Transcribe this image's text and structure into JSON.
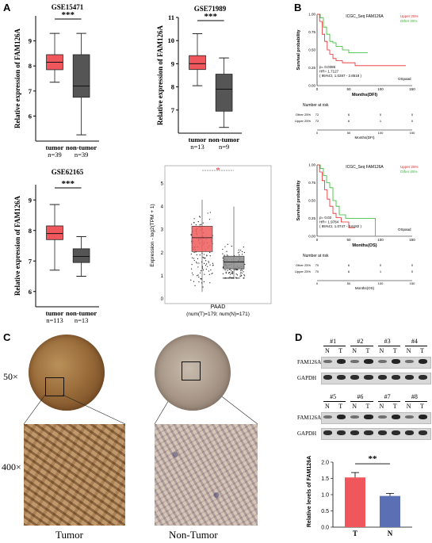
{
  "panels": {
    "A": "A",
    "B": "B",
    "C": "C",
    "D": "D"
  },
  "boxplots": [
    {
      "title": "GSE15471",
      "ylabel": "Relative expression of FAM126A",
      "yticks": [
        "6",
        "7",
        "8",
        "9"
      ],
      "ylim": [
        5,
        10
      ],
      "sig": "***",
      "groups": [
        {
          "name": "tumor",
          "n": "n=39",
          "color": "#f0575d",
          "min": 7.35,
          "q1": 7.85,
          "median": 8.15,
          "q3": 8.45,
          "max": 9.3
        },
        {
          "name": "non-tumor",
          "n": "n=39",
          "color": "#555555",
          "min": 5.25,
          "q1": 6.75,
          "median": 7.2,
          "q3": 8.45,
          "max": 9.3
        }
      ]
    },
    {
      "title": "GSE71989",
      "ylabel": "Relative expression of FAM126A",
      "yticks": [
        "7",
        "8",
        "9",
        "10",
        "11"
      ],
      "ylim": [
        6,
        11
      ],
      "sig": "***",
      "groups": [
        {
          "name": "tumor",
          "n": "n=13",
          "color": "#f0575d",
          "min": 8.05,
          "q1": 8.75,
          "median": 9.0,
          "q3": 9.35,
          "max": 10.3
        },
        {
          "name": "non-tumor",
          "n": "n=9",
          "color": "#555555",
          "min": 6.25,
          "q1": 6.95,
          "median": 7.9,
          "q3": 8.55,
          "max": 9.25
        }
      ]
    },
    {
      "title": "GSE62165",
      "ylabel": "Relative expression of FAM126A",
      "yticks": [
        "6",
        "7",
        "8",
        "9"
      ],
      "ylim": [
        5.5,
        9.5
      ],
      "sig": "***",
      "groups": [
        {
          "name": "tumor",
          "n": "n=113",
          "color": "#f0575d",
          "min": 6.7,
          "q1": 7.7,
          "median": 7.9,
          "q3": 8.15,
          "max": 8.85
        },
        {
          "name": "non-tumor",
          "n": "n=13",
          "color": "#555555",
          "min": 6.5,
          "q1": 6.95,
          "median": 7.15,
          "q3": 7.4,
          "max": 7.8
        }
      ]
    }
  ],
  "gepia": {
    "ylabel": "Expression - log2(TPM + 1)",
    "yticks": [
      "0",
      "1",
      "2",
      "3",
      "4",
      "5"
    ],
    "ylim": [
      0,
      5.5
    ],
    "sig": "*",
    "xlabel": "PAAD",
    "xsub": "(num(T)=179; num(N)=171)",
    "groups": [
      {
        "name": "T",
        "color": "#f05a5a",
        "min": 0.3,
        "q1": 2.05,
        "median": 2.65,
        "q3": 3.15,
        "max": 4.3
      },
      {
        "name": "N",
        "color": "#888888",
        "min": 0.9,
        "q1": 1.3,
        "median": 1.6,
        "q3": 1.85,
        "max": 4.0
      }
    ]
  },
  "km": [
    {
      "title": "ICGC_Seq FAM126A",
      "ylabel": "Survival probability",
      "xlabel": "Months(DFI)",
      "xticks": [
        "0",
        "50",
        "100",
        "150"
      ],
      "yticks": [
        "0.00",
        "0.25",
        "0.50",
        "0.75",
        "1.00"
      ],
      "legend": [
        {
          "label": "Upper 25%",
          "color": "#e8292b"
        },
        {
          "label": "Other 25%",
          "color": "#2db82d"
        }
      ],
      "stats": [
        "p= 0.0386",
        "HR= 1.7127",
        "( 95%CI, 1.0287 - 2.8518 )"
      ],
      "tag": "OSpaad",
      "risk_title": "Number at risk",
      "risk_rows": [
        {
          "label": "Other 25%",
          "values": [
            "72",
            "6",
            "0",
            "0"
          ]
        },
        {
          "label": "Upper 25%",
          "values": [
            "72",
            "6",
            "1",
            "0"
          ]
        }
      ],
      "risk_xlabel": "Months(DFI)",
      "series": {
        "green": [
          [
            0,
            1.0
          ],
          [
            5,
            0.95
          ],
          [
            10,
            0.82
          ],
          [
            15,
            0.72
          ],
          [
            20,
            0.62
          ],
          [
            25,
            0.6
          ],
          [
            30,
            0.55
          ],
          [
            40,
            0.5
          ],
          [
            50,
            0.46
          ],
          [
            60,
            0.46
          ],
          [
            80,
            0.46
          ]
        ],
        "red": [
          [
            0,
            1.0
          ],
          [
            4,
            0.9
          ],
          [
            8,
            0.72
          ],
          [
            12,
            0.62
          ],
          [
            16,
            0.5
          ],
          [
            20,
            0.44
          ],
          [
            25,
            0.38
          ],
          [
            30,
            0.35
          ],
          [
            40,
            0.32
          ],
          [
            60,
            0.28
          ],
          [
            140,
            0.28
          ]
        ]
      }
    },
    {
      "title": "ICGC_Seq FAM126A",
      "ylabel": "Survival probability",
      "xlabel": "Months(OS)",
      "xticks": [
        "0",
        "50",
        "100",
        "150"
      ],
      "yticks": [
        "0.00",
        "0.25",
        "0.50",
        "0.75",
        "1.00"
      ],
      "legend": [
        {
          "label": "Upper 25%",
          "color": "#e8292b"
        },
        {
          "label": "Other 25%",
          "color": "#2db82d"
        }
      ],
      "stats": [
        "p= 0.02",
        "HR= 1.9784",
        "( 95%CI, 1.0747 - 3.6182 )"
      ],
      "tag": "OSpaad",
      "risk_title": "Number at risk",
      "risk_rows": [
        {
          "label": "Other 25%",
          "values": [
            "70",
            "6",
            "0",
            "0"
          ]
        },
        {
          "label": "Upper 25%",
          "values": [
            "70",
            "6",
            "1",
            "0"
          ]
        }
      ],
      "risk_xlabel": "Months(OS)",
      "series": {
        "green": [
          [
            0,
            1.0
          ],
          [
            5,
            0.95
          ],
          [
            10,
            0.85
          ],
          [
            15,
            0.75
          ],
          [
            20,
            0.68
          ],
          [
            25,
            0.5
          ],
          [
            30,
            0.42
          ],
          [
            35,
            0.3
          ],
          [
            45,
            0.25
          ],
          [
            90,
            0.25
          ],
          [
            92,
            0.0
          ]
        ],
        "red": [
          [
            0,
            1.0
          ],
          [
            4,
            0.9
          ],
          [
            8,
            0.78
          ],
          [
            12,
            0.65
          ],
          [
            16,
            0.52
          ],
          [
            20,
            0.42
          ],
          [
            25,
            0.32
          ],
          [
            30,
            0.26
          ],
          [
            38,
            0.2
          ],
          [
            50,
            0.12
          ],
          [
            60,
            0.12
          ]
        ]
      }
    }
  ],
  "ihc": {
    "mag_low": "50×",
    "mag_high": "400×",
    "tumor": "Tumor",
    "nontumor": "Non-Tumor"
  },
  "western": {
    "row1_pairs": [
      "#1",
      "#2",
      "#3",
      "#4"
    ],
    "row2_pairs": [
      "#5",
      "#6",
      "#7",
      "#8"
    ],
    "lane_labels": [
      "N",
      "T"
    ],
    "targets": [
      "FAM126A",
      "GAPDH"
    ]
  },
  "bar": {
    "ylabel": "Relative levels of FAM126A",
    "yticks": [
      "0.0",
      "0.5",
      "1.0",
      "1.5",
      "2.0"
    ],
    "ylim": [
      0,
      2.0
    ],
    "sig": "**",
    "categories": [
      "T",
      "N"
    ],
    "values": [
      1.53,
      0.96
    ],
    "errors": [
      0.15,
      0.08
    ],
    "colors": [
      "#f0575d",
      "#5b6fb5"
    ]
  },
  "chart_data": [
    {
      "type": "box",
      "title": "GSE15471",
      "ylabel": "Relative expression of FAM126A",
      "categories": [
        "tumor",
        "non-tumor"
      ],
      "n": [
        "n=39",
        "n=39"
      ],
      "ylim": [
        5,
        10
      ]
    },
    {
      "type": "box",
      "title": "GSE71989",
      "ylabel": "Relative expression of FAM126A",
      "categories": [
        "tumor",
        "non-tumor"
      ],
      "n": [
        "n=13",
        "n=9"
      ],
      "ylim": [
        6,
        11
      ]
    },
    {
      "type": "box",
      "title": "GSE62165",
      "ylabel": "Relative expression of FAM126A",
      "categories": [
        "tumor",
        "non-tumor"
      ],
      "n": [
        "n=113",
        "n=13"
      ],
      "ylim": [
        5.5,
        9.5
      ]
    },
    {
      "type": "bar",
      "ylabel": "Relative levels of FAM126A",
      "categories": [
        "T",
        "N"
      ],
      "values": [
        1.53,
        0.96
      ],
      "ylim": [
        0,
        2.0
      ]
    }
  ]
}
